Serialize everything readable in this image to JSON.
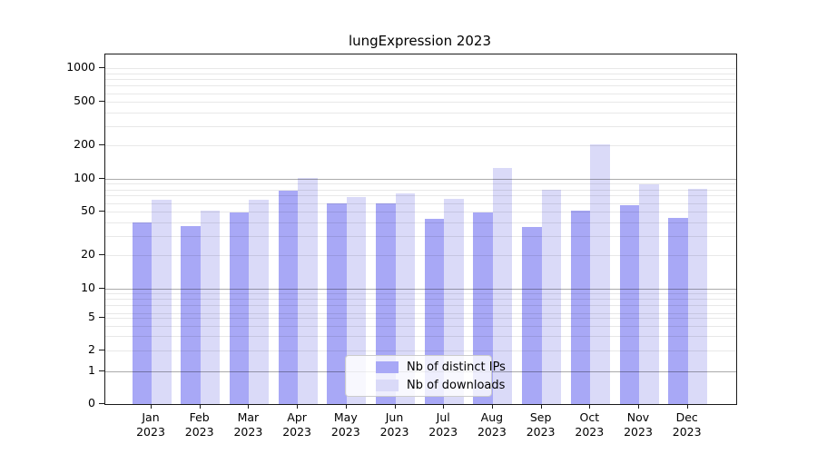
{
  "figure": {
    "title": "lungExpression 2023"
  },
  "chart_data": {
    "type": "bar",
    "title": "lungExpression 2023",
    "categories": [
      "Jan",
      "Feb",
      "Mar",
      "Apr",
      "May",
      "Jun",
      "Jul",
      "Aug",
      "Sep",
      "Oct",
      "Nov",
      "Dec"
    ],
    "category_line2": "2023",
    "series": [
      {
        "name": "Nb of distinct IPs",
        "color": "#a8a8f6",
        "values": [
          40,
          37,
          49,
          77,
          59,
          60,
          43,
          49,
          36,
          51,
          57,
          44
        ]
      },
      {
        "name": "Nb of downloads",
        "color": "#dadaf8",
        "values": [
          64,
          51,
          64,
          101,
          68,
          74,
          66,
          125,
          79,
          205,
          88,
          80
        ]
      }
    ],
    "xlabel": "",
    "ylabel": "",
    "yscale": "symlog",
    "ylim": [
      0,
      1400
    ],
    "y_tick_labels": [
      "1000",
      "500",
      "200",
      "100",
      "50",
      "20",
      "10",
      "5",
      "2",
      "1",
      "0"
    ],
    "grid": "both",
    "legend": {
      "position": "lower center",
      "items": [
        "Nb of distinct IPs",
        "Nb of downloads"
      ]
    }
  }
}
